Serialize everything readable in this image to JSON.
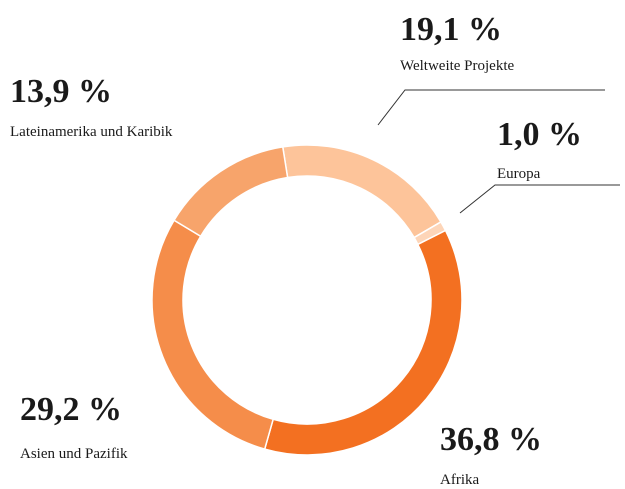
{
  "chart_data": {
    "type": "donut",
    "categories": [
      "Weltweite Projekte",
      "Europa",
      "Afrika",
      "Asien und Pazifik",
      "Lateinamerika und Karibik"
    ],
    "values": [
      19.1,
      1.0,
      36.8,
      29.2,
      13.9
    ],
    "value_labels": [
      "19,1 %",
      "1,0 %",
      "36,8 %",
      "29,2 %",
      "13,9 %"
    ],
    "colors": [
      "#fdc49a",
      "#fdd5b8",
      "#f37021",
      "#f58d4a",
      "#f7a46b"
    ]
  }
}
